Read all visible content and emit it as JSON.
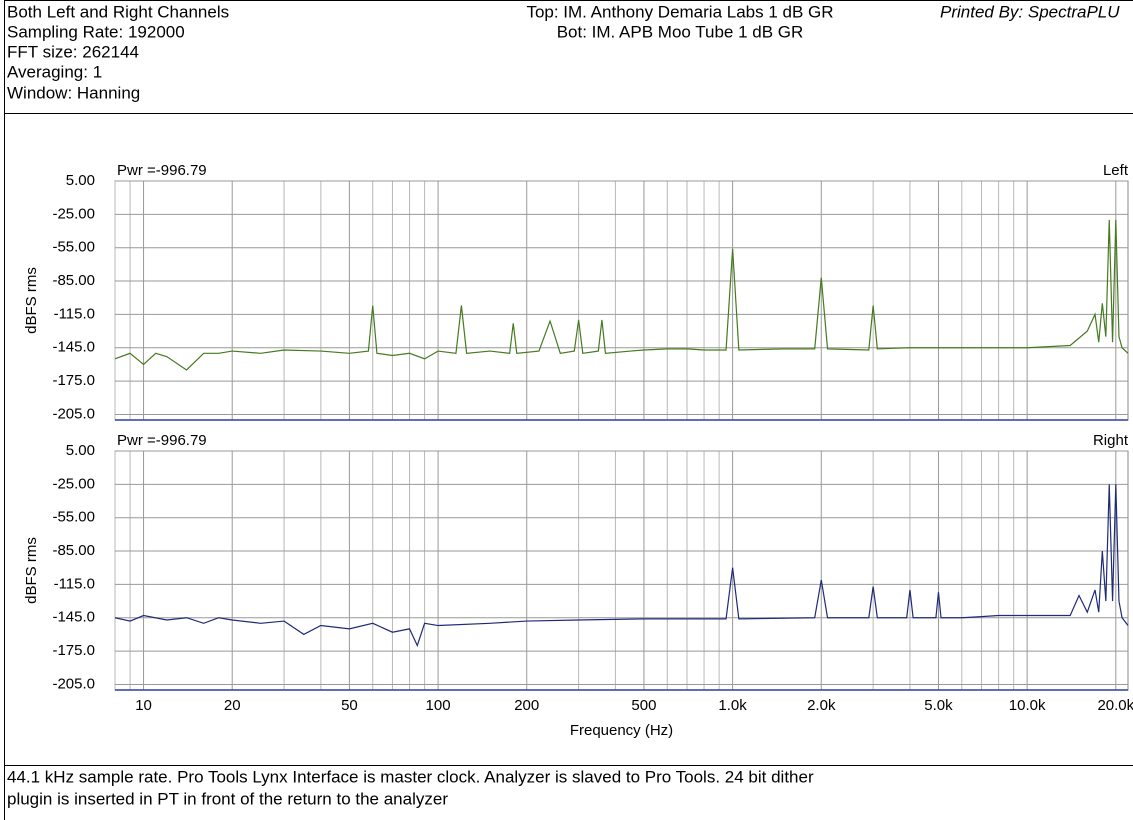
{
  "header": {
    "left": [
      "Both Left and Right Channels",
      "Sampling Rate: 192000",
      "FFT size: 262144",
      "Averaging: 1",
      "Window: Hanning"
    ],
    "center": [
      "Top: IM. Anthony Demaria Labs 1 dB GR",
      "Bot: IM. APB Moo Tube 1 dB GR"
    ],
    "right": "Printed By: SpectraPLU"
  },
  "footer": [
    "44.1 kHz sample rate. Pro Tools Lynx Interface is master clock. Analyzer is slaved to Pro Tools. 24 bit dither",
    "plugin is inserted in PT in front of the return to the analyzer"
  ],
  "chart_data": [
    {
      "type": "line",
      "annotation": "Pwr =-996.79",
      "channel": "Left",
      "ylabel": "dBFS rms",
      "log_x": true,
      "grid": true,
      "ylim": [
        -210,
        5
      ],
      "yticks": [
        {
          "value": 5,
          "label": "5.00"
        },
        {
          "value": -25,
          "label": "-25.00"
        },
        {
          "value": -55,
          "label": "-55.00"
        },
        {
          "value": -85,
          "label": "-85.00"
        },
        {
          "value": -115,
          "label": "-115.0"
        },
        {
          "value": -145,
          "label": "-145.0"
        },
        {
          "value": -175,
          "label": "-175.0"
        },
        {
          "value": -205,
          "label": "-205.0"
        }
      ],
      "x": [
        8,
        9,
        10,
        11,
        12,
        14,
        16,
        18,
        20,
        25,
        30,
        40,
        50,
        58,
        60,
        62,
        70,
        80,
        90,
        100,
        115,
        120,
        125,
        150,
        175,
        180,
        185,
        220,
        240,
        260,
        290,
        300,
        310,
        350,
        360,
        370,
        450,
        500,
        600,
        700,
        800,
        950,
        1000,
        1050,
        1500,
        1900,
        2000,
        2100,
        2900,
        3000,
        3100,
        4000,
        5000,
        7000,
        10000,
        14000,
        16000,
        17000,
        17500,
        18000,
        18500,
        19000,
        19500,
        20000,
        20500,
        21000,
        22000
      ],
      "series": [
        {
          "color": "#467a1f",
          "values": [
            -155,
            -150,
            -160,
            -150,
            -153,
            -165,
            -150,
            -150,
            -148,
            -150,
            -147,
            -148,
            -150,
            -148,
            -107,
            -150,
            -152,
            -150,
            -155,
            -148,
            -150,
            -107,
            -150,
            -148,
            -150,
            -123,
            -150,
            -148,
            -121,
            -150,
            -148,
            -120,
            -150,
            -148,
            -120,
            -150,
            -148,
            -147,
            -146,
            -146,
            -147,
            -147,
            -56,
            -147,
            -146,
            -146,
            -82,
            -146,
            -147,
            -107,
            -146,
            -145,
            -145,
            -145,
            -145,
            -143,
            -130,
            -115,
            -140,
            -105,
            -135,
            -30,
            -140,
            -30,
            -135,
            -145,
            -150
          ]
        }
      ]
    },
    {
      "type": "line",
      "annotation": "Pwr =-996.79",
      "channel": "Right",
      "ylabel": "dBFS rms",
      "xlabel": "Frequency (Hz)",
      "log_x": true,
      "grid": true,
      "xlim": [
        8,
        22000
      ],
      "xticks": [
        10,
        20,
        50,
        100,
        200,
        500,
        {
          "value": 1000,
          "label": "1.0k"
        },
        {
          "value": 2000,
          "label": "2.0k"
        },
        {
          "value": 5000,
          "label": "5.0k"
        },
        {
          "value": 10000,
          "label": "10.0k"
        },
        {
          "value": 20000,
          "label": "20.0k"
        }
      ],
      "xminorticks": [
        8,
        9,
        30,
        40,
        60,
        70,
        80,
        90,
        300,
        400,
        600,
        700,
        800,
        900,
        3000,
        4000,
        6000,
        7000,
        8000,
        9000
      ],
      "ylim": [
        -210,
        5
      ],
      "yticks": [
        {
          "value": 5,
          "label": "5.00"
        },
        {
          "value": -25,
          "label": "-25.00"
        },
        {
          "value": -55,
          "label": "-55.00"
        },
        {
          "value": -85,
          "label": "-85.00"
        },
        {
          "value": -115,
          "label": "-115.0"
        },
        {
          "value": -145,
          "label": "-145.0"
        },
        {
          "value": -175,
          "label": "-175.0"
        },
        {
          "value": -205,
          "label": "-205.0"
        }
      ],
      "x": [
        8,
        9,
        10,
        12,
        14,
        16,
        18,
        20,
        25,
        30,
        35,
        40,
        50,
        60,
        70,
        80,
        85,
        90,
        100,
        150,
        200,
        300,
        500,
        700,
        950,
        1000,
        1050,
        1900,
        2000,
        2100,
        2900,
        3000,
        3100,
        3900,
        4000,
        4100,
        4900,
        5000,
        5100,
        6000,
        7000,
        8000,
        10000,
        14000,
        15000,
        16000,
        17000,
        17500,
        18000,
        18500,
        19000,
        19500,
        20000,
        20500,
        21000,
        22000
      ],
      "series": [
        {
          "color": "#1f2a78",
          "values": [
            -145,
            -148,
            -143,
            -147,
            -145,
            -150,
            -145,
            -147,
            -150,
            -148,
            -160,
            -152,
            -155,
            -150,
            -158,
            -155,
            -170,
            -150,
            -152,
            -150,
            -148,
            -147,
            -146,
            -146,
            -146,
            -100,
            -146,
            -145,
            -111,
            -145,
            -145,
            -117,
            -145,
            -145,
            -120,
            -145,
            -145,
            -122,
            -145,
            -145,
            -144,
            -143,
            -143,
            -143,
            -125,
            -140,
            -120,
            -140,
            -85,
            -130,
            -25,
            -130,
            -25,
            -130,
            -145,
            -152
          ]
        }
      ]
    }
  ]
}
